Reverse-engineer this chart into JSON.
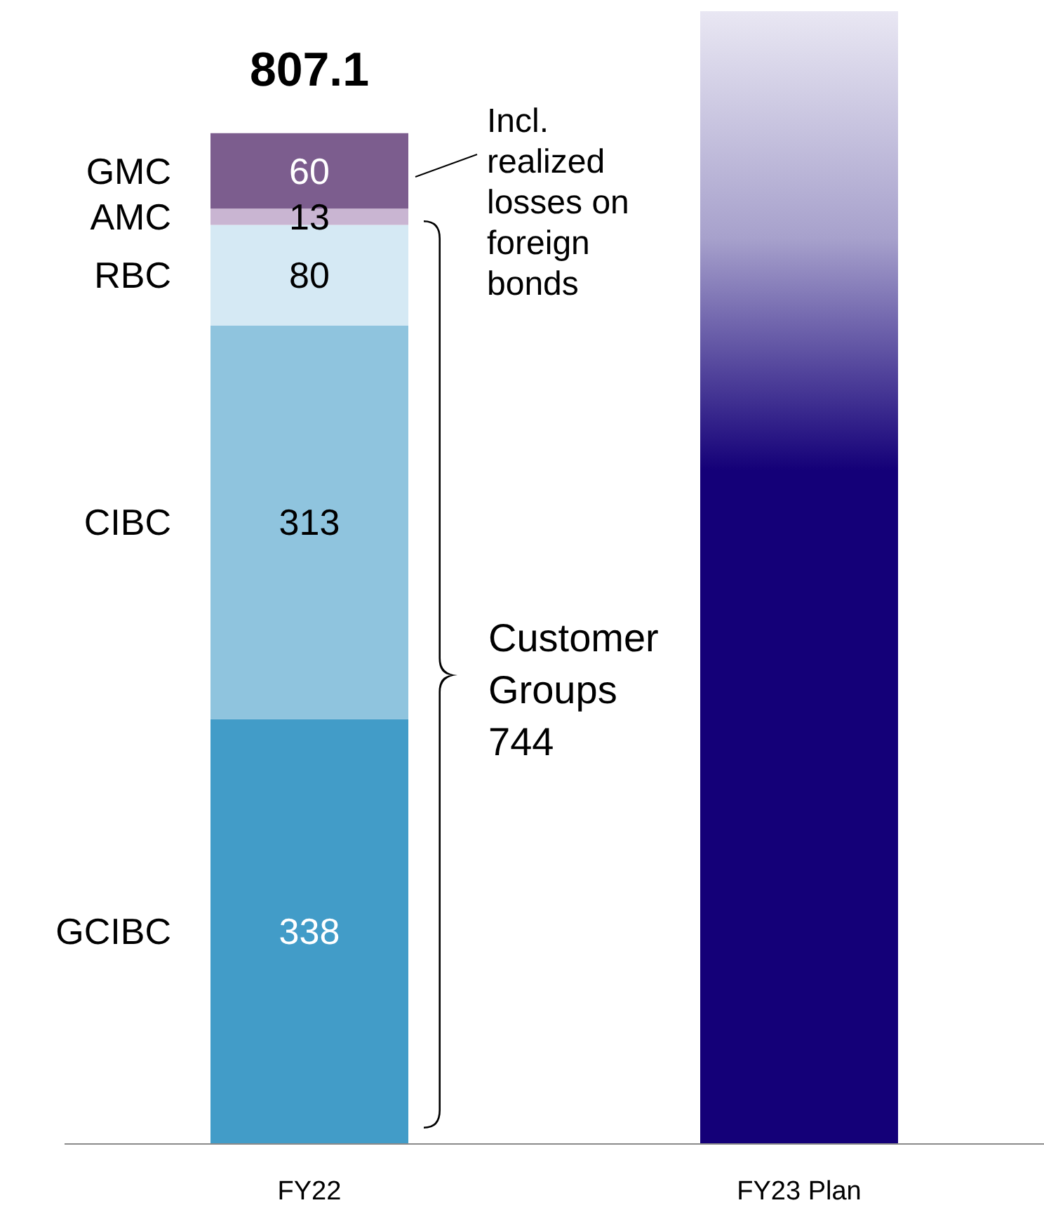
{
  "chart_data": {
    "type": "bar",
    "stacked": true,
    "categories": [
      "FY22",
      "FY23 Plan"
    ],
    "series": [
      {
        "name": "GCIBC",
        "color": "#429cc8",
        "values": [
          338,
          null
        ],
        "value_labels": [
          "338",
          null
        ]
      },
      {
        "name": "CIBC",
        "color": "#8fc4de",
        "values": [
          313,
          null
        ],
        "value_labels": [
          "313",
          null
        ]
      },
      {
        "name": "RBC",
        "color": "#d5e9f4",
        "values": [
          80,
          null
        ],
        "value_labels": [
          "80",
          null
        ]
      },
      {
        "name": "AMC",
        "color": "#c9b5d2",
        "values": [
          13,
          null
        ],
        "value_labels": [
          "13",
          null
        ]
      },
      {
        "name": "GMC",
        "color": "#7c5d8e",
        "values": [
          60,
          null
        ],
        "value_labels": [
          "60",
          null
        ]
      },
      {
        "color": "#140078",
        "values": [
          null,
          901
        ],
        "value_labels": [
          null,
          null
        ]
      }
    ],
    "annotations": [
      "Incl. realized losses on foreign bonds",
      "Customer Groups 744",
      {
        "text": "807.1",
        "x": "FY22",
        "y": 804
      }
    ],
    "legend": false,
    "grid": false
  }
}
